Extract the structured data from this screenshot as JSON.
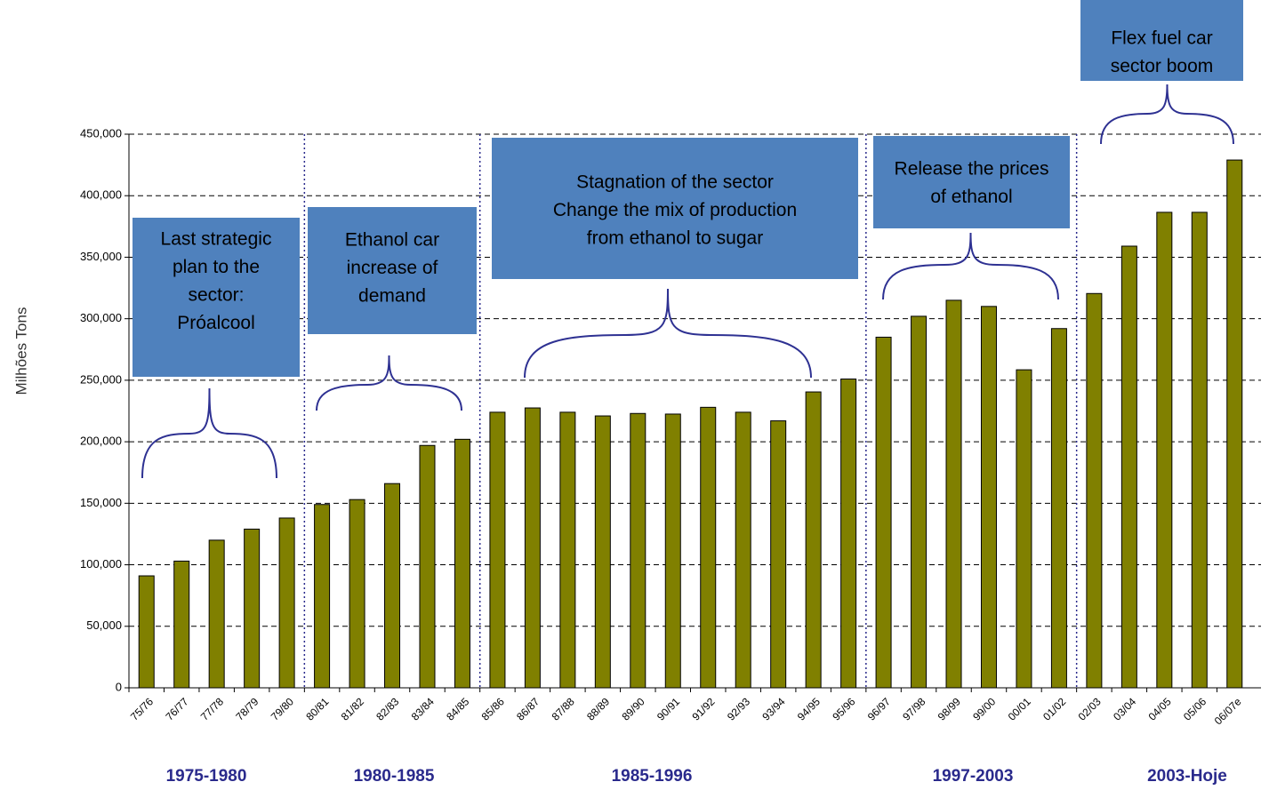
{
  "chart_data": {
    "type": "bar",
    "y_label": "Milhões Tons",
    "categories": [
      "75/76",
      "76/77",
      "77/78",
      "78/79",
      "79/80",
      "80/81",
      "81/82",
      "82/83",
      "83/84",
      "84/85",
      "85/86",
      "86/87",
      "87/88",
      "88/89",
      "89/90",
      "90/91",
      "91/92",
      "92/93",
      "93/94",
      "94/95",
      "95/96",
      "96/97",
      "97/98",
      "98/99",
      "99/00",
      "00/01",
      "01/02",
      "02/03",
      "03/04",
      "04/05",
      "05/06",
      "06/07e"
    ],
    "values": [
      91000,
      103000,
      120000,
      129000,
      138000,
      149000,
      153000,
      166000,
      197000,
      202000,
      224000,
      227500,
      224000,
      221000,
      223000,
      222500,
      228000,
      224000,
      217000,
      240500,
      251000,
      285000,
      302000,
      315000,
      310000,
      258500,
      292000,
      320500,
      359000,
      386500,
      386500,
      429000
    ],
    "color": "#808000",
    "ylim": [
      0,
      450000
    ],
    "yticks": [
      0,
      {
        "value": 50000,
        "label": "50,000"
      },
      {
        "value": 100000,
        "label": "100,000"
      },
      {
        "value": 150000,
        "label": "150,000"
      },
      {
        "value": 200000,
        "label": "200,000"
      },
      {
        "value": 250000,
        "label": "250,000"
      },
      {
        "value": 300000,
        "label": "300,000"
      },
      {
        "value": 350000,
        "label": "350,000"
      },
      {
        "value": 400000,
        "label": "400,000"
      },
      {
        "value": 450000,
        "label": "450,000"
      }
    ],
    "grid": true,
    "periods": [
      "1975-1980",
      "1980-1985",
      "1985-1996",
      "1997-2003",
      "2003-Hoje"
    ],
    "annotations": [
      [
        "Last strategic",
        "plan to the",
        "sector:",
        "Próalcool"
      ],
      [
        "Ethanol car",
        "increase of",
        "demand"
      ],
      [
        "Stagnation of the sector",
        "Change the mix of production",
        "from ethanol to sugar"
      ],
      [
        "Release the prices",
        "of ethanol"
      ],
      [
        "Flex fuel car",
        "sector boom"
      ]
    ]
  }
}
